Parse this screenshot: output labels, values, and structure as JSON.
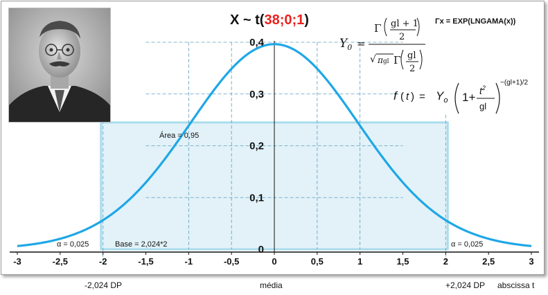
{
  "chart_data": {
    "type": "area",
    "title_prefix": "X ~ t(",
    "title_params": "38;0;1",
    "title_suffix": ")",
    "distribution": {
      "name": "t",
      "df": 38,
      "location": 0,
      "scale": 1
    },
    "xlim": [
      -3,
      3
    ],
    "ylim": [
      0,
      0.4
    ],
    "x_ticks": [
      "-3",
      "-2,5",
      "-2",
      "-1,5",
      "-1",
      "-0,5",
      "0",
      "0,5",
      "1",
      "1,5",
      "2",
      "2,5",
      "3"
    ],
    "y_ticks": [
      "0",
      "0,1",
      "0,2",
      "0,3",
      "0,4"
    ],
    "critical_value": 2.024,
    "area_label": "Área  = 0,95",
    "base_label": "Base = 2,024*2",
    "alpha_left_label": "α = 0,025",
    "alpha_right_label": "α = 0,025",
    "gamma_note": "Γx = EXP(LNGAMA(x))",
    "formula_y0": "Y0 = Γ((gl+1)/2) / (√(π gl) Γ(gl/2))",
    "formula_f": "f(t) = Y0 (1 + t²/gl)^(−(gl+1)/2)",
    "grid": true,
    "colors": {
      "curve": "#1ea7e6",
      "band_fill": "#e2f2f8",
      "band_border": "#a9dcec",
      "title_red": "#e8221c",
      "grid": "#5c9cbf"
    }
  },
  "footer": {
    "left_dp": "-2,024 DP",
    "center": "média",
    "right_dp": "+2,024 DP",
    "axis_name": "abscissa t"
  },
  "portrait": {
    "icon": "portrait-photo"
  }
}
